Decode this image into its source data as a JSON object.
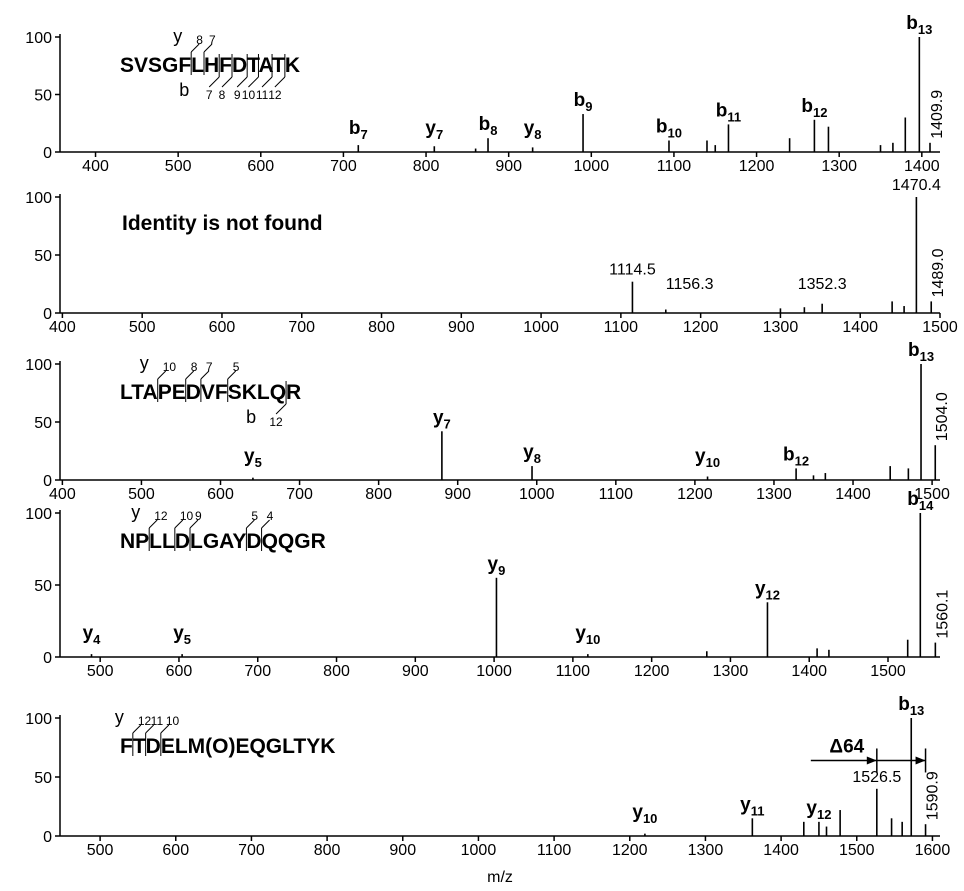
{
  "chart_data": [
    {
      "type": "bar",
      "color": "#000000",
      "sequence": "SVSGFLHFDTATK",
      "fragments": {
        "y": "y",
        "y_ions": [
          "8",
          "7"
        ],
        "b": "b",
        "b_ions": [
          "7",
          "8",
          "9",
          "10",
          "11",
          "12"
        ]
      },
      "x": [
        718,
        810,
        860,
        875,
        929,
        990,
        1094,
        1140,
        1150,
        1166,
        1240,
        1270,
        1287,
        1350,
        1365,
        1380,
        1397,
        1409.9
      ],
      "values": [
        6,
        5,
        3,
        12,
        4,
        33,
        10,
        10,
        6,
        24,
        12,
        28,
        22,
        6,
        8,
        30,
        100,
        8
      ],
      "ion_labels": [
        {
          "ion": "b",
          "sub": "7"
        },
        {
          "ion": "y",
          "sub": "7"
        },
        null,
        {
          "ion": "b",
          "sub": "8"
        },
        {
          "ion": "y",
          "sub": "8"
        },
        {
          "ion": "b",
          "sub": "9"
        },
        {
          "ion": "b",
          "sub": "10"
        },
        null,
        null,
        {
          "ion": "b",
          "sub": "11"
        },
        null,
        {
          "ion": "b",
          "sub": "12"
        },
        null,
        null,
        null,
        null,
        {
          "ion": "b",
          "sub": "13"
        },
        null
      ],
      "x_labels": [
        null,
        null,
        null,
        null,
        null,
        null,
        null,
        null,
        null,
        null,
        null,
        null,
        null,
        null,
        null,
        null,
        null,
        "1409.9"
      ],
      "xlim": [
        357,
        1422
      ],
      "xticks": [
        400,
        500,
        600,
        700,
        800,
        900,
        1000,
        1100,
        1200,
        1300,
        1400
      ],
      "ylim": [
        0,
        100
      ],
      "yticks": [
        0,
        50,
        100
      ]
    },
    {
      "type": "bar",
      "color": "#000000",
      "note": "Identity is not found",
      "x": [
        1114.5,
        1156.3,
        1300,
        1330,
        1352.3,
        1440,
        1455,
        1470.4,
        1489.0
      ],
      "values": [
        27,
        3,
        4,
        5,
        8,
        10,
        6,
        100,
        10
      ],
      "ion_labels": [
        null,
        null,
        null,
        null,
        null,
        null,
        null,
        null,
        null
      ],
      "x_labels": [
        "1114.5",
        "1156.3",
        null,
        null,
        "1352.3",
        null,
        null,
        "1470.4",
        "1489.0"
      ],
      "xlim": [
        397,
        1500
      ],
      "xticks": [
        400,
        500,
        600,
        700,
        800,
        900,
        1000,
        1100,
        1200,
        1300,
        1400,
        1500
      ],
      "ylim": [
        0,
        100
      ],
      "yticks": [
        0,
        50,
        100
      ]
    },
    {
      "type": "bar",
      "color": "#000000",
      "sequence": "LTAPEDVFSKLQR",
      "fragments": {
        "y": "y",
        "y_ions": [
          "10",
          "8",
          "7",
          "5"
        ],
        "b": "b",
        "b_ions": [
          "12"
        ]
      },
      "x": [
        641,
        880,
        994,
        1216,
        1328,
        1350,
        1365,
        1447,
        1470,
        1486,
        1504.0
      ],
      "values": [
        2,
        42,
        12,
        3,
        10,
        4,
        6,
        12,
        10,
        100,
        30
      ],
      "ion_labels": [
        {
          "ion": "y",
          "sub": "5"
        },
        {
          "ion": "y",
          "sub": "7"
        },
        {
          "ion": "y",
          "sub": "8"
        },
        {
          "ion": "y",
          "sub": "10"
        },
        {
          "ion": "b",
          "sub": "12"
        },
        null,
        null,
        null,
        null,
        {
          "ion": "b",
          "sub": "13"
        },
        null
      ],
      "x_labels": [
        null,
        null,
        null,
        null,
        null,
        null,
        null,
        null,
        null,
        null,
        "1504.0"
      ],
      "xlim": [
        397,
        1510
      ],
      "xticks": [
        400,
        500,
        600,
        700,
        800,
        900,
        1000,
        1100,
        1200,
        1300,
        1400,
        1500
      ],
      "ylim": [
        0,
        100
      ],
      "yticks": [
        0,
        50,
        100
      ]
    },
    {
      "type": "bar",
      "color": "#000000",
      "sequence": "NPLLDLGAYDQQGR",
      "fragments": {
        "y": "y",
        "y_ions": [
          "12",
          "10",
          "9",
          "5",
          "4"
        ]
      },
      "x": [
        489,
        604,
        1003,
        1119,
        1270,
        1347,
        1410,
        1425,
        1525,
        1541,
        1560.1
      ],
      "values": [
        2,
        2,
        55,
        2,
        4,
        38,
        6,
        5,
        12,
        100,
        10
      ],
      "ion_labels": [
        {
          "ion": "y",
          "sub": "4"
        },
        {
          "ion": "y",
          "sub": "5"
        },
        {
          "ion": "y",
          "sub": "9"
        },
        {
          "ion": "y",
          "sub": "10"
        },
        null,
        {
          "ion": "y",
          "sub": "12"
        },
        null,
        null,
        null,
        {
          "ion": "b",
          "sub": "14"
        },
        null
      ],
      "x_labels": [
        null,
        null,
        null,
        null,
        null,
        null,
        null,
        null,
        null,
        null,
        "1560.1"
      ],
      "xlim": [
        449,
        1566
      ],
      "xticks": [
        500,
        600,
        700,
        800,
        900,
        1000,
        1100,
        1200,
        1300,
        1400,
        1500
      ],
      "ylim": [
        0,
        100
      ],
      "yticks": [
        0,
        50,
        100
      ]
    },
    {
      "type": "bar",
      "color": "#000000",
      "sequence": "FTDELM(O)EQGLTYK",
      "fragments": {
        "y": "y",
        "y_ions": [
          "12",
          "11",
          "10"
        ]
      },
      "x": [
        1220,
        1362,
        1430,
        1450,
        1460,
        1478,
        1526.5,
        1546,
        1560,
        1572,
        1590.9
      ],
      "values": [
        2,
        15,
        12,
        12,
        8,
        22,
        40,
        15,
        12,
        100,
        10
      ],
      "ion_labels": [
        {
          "ion": "y",
          "sub": "10"
        },
        {
          "ion": "y",
          "sub": "11"
        },
        null,
        {
          "ion": "y",
          "sub": "12"
        },
        null,
        null,
        null,
        null,
        null,
        {
          "ion": "b",
          "sub": "13"
        },
        null
      ],
      "x_labels": [
        null,
        null,
        null,
        null,
        null,
        null,
        "1526.5",
        null,
        null,
        null,
        "1590.9"
      ],
      "delta": "Δ64",
      "xlim": [
        447,
        1610
      ],
      "xticks": [
        500,
        600,
        700,
        800,
        900,
        1000,
        1100,
        1200,
        1300,
        1400,
        1500,
        1600
      ],
      "ylim": [
        0,
        100
      ],
      "yticks": [
        0,
        50,
        100
      ],
      "x_label": "m/z"
    }
  ]
}
